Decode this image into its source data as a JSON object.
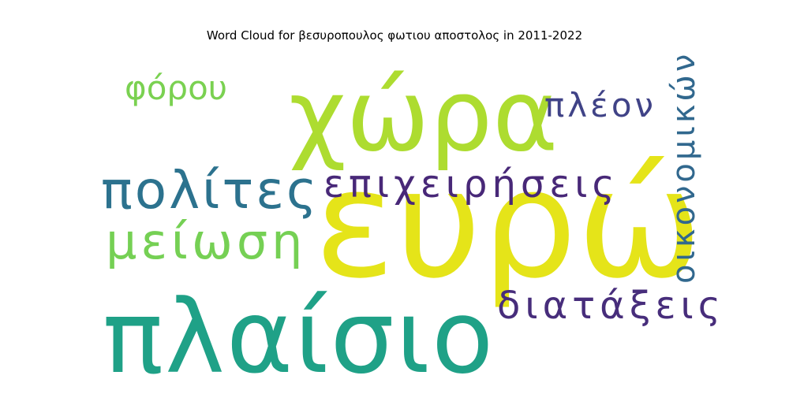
{
  "chart_data": {
    "type": "wordcloud",
    "title": "Word Cloud for βεσυροπουλος φωτιου αποστολος in 2011-2022",
    "words": [
      {
        "text": "ευρώ",
        "weight": 1.0,
        "color": "#e5e419"
      },
      {
        "text": "πλαίσιο",
        "weight": 0.95,
        "color": "#1fa187"
      },
      {
        "text": "χώρα",
        "weight": 0.8,
        "color": "#addc30"
      },
      {
        "text": "πολίτες",
        "weight": 0.55,
        "color": "#2c728e"
      },
      {
        "text": "μείωση",
        "weight": 0.5,
        "color": "#75d054"
      },
      {
        "text": "επιχειρήσεις",
        "weight": 0.4,
        "color": "#482878"
      },
      {
        "text": "διατάξεις",
        "weight": 0.4,
        "color": "#472d7b"
      },
      {
        "text": "οικονομικών",
        "weight": 0.38,
        "color": "#31688e"
      },
      {
        "text": "πλέον",
        "weight": 0.35,
        "color": "#404387"
      },
      {
        "text": "φόρου",
        "weight": 0.35,
        "color": "#7ad151"
      }
    ]
  }
}
